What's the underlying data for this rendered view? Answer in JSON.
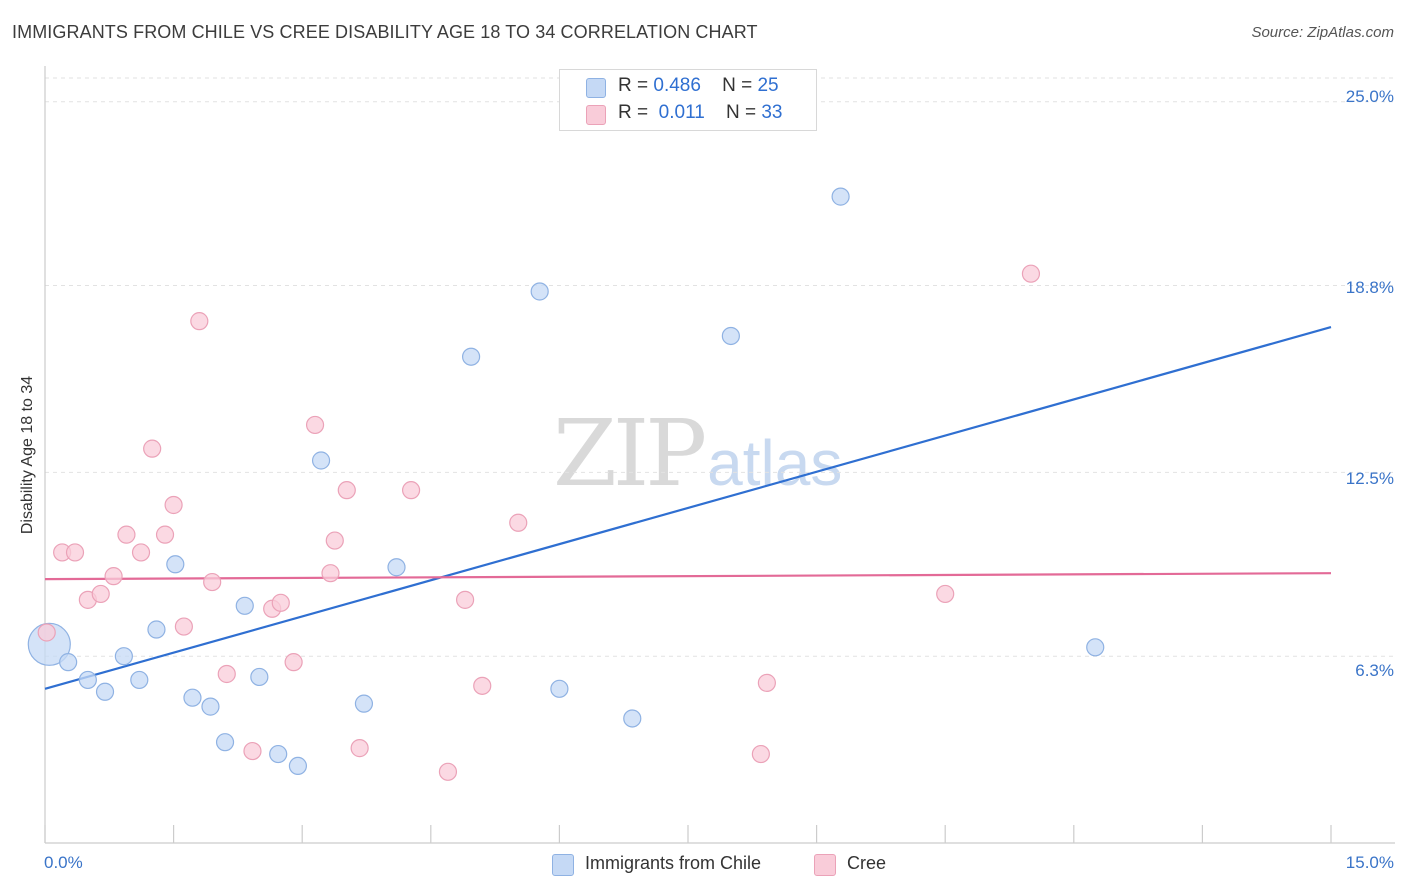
{
  "title": "IMMIGRANTS FROM CHILE VS CREE DISABILITY AGE 18 TO 34 CORRELATION CHART",
  "source": "Source: ZipAtlas.com",
  "watermark": {
    "zip": "ZIP",
    "atlas": "atlas"
  },
  "colors": {
    "blue_fill": "#c5d9f5",
    "blue_stroke": "#8fb2e3",
    "blue_line": "#2f6fd1",
    "pink_fill": "#f9ccd9",
    "pink_stroke": "#eba2b8",
    "pink_line": "#e36a97",
    "grid": "#e2e2e2",
    "tick_text": "#3a74c8"
  },
  "legend": {
    "series1": {
      "r_label": "R =",
      "r_value": "0.486",
      "n_label": "N =",
      "n_value": "25"
    },
    "series2": {
      "r_label": "R =",
      "r_value": " 0.011",
      "n_label": "N =",
      "n_value": "33"
    }
  },
  "chart_data": {
    "type": "scatter",
    "title": "IMMIGRANTS FROM CHILE VS CREE DISABILITY AGE 18 TO 34 CORRELATION CHART",
    "xlabel": "",
    "ylabel": "Disability Age 18 to 34",
    "xlim": [
      0,
      15
    ],
    "ylim": [
      0,
      25.8
    ],
    "x_tick_labels": [
      "0.0%",
      "15.0%"
    ],
    "y_ticks": [
      6.3,
      12.5,
      18.8,
      25.0
    ],
    "y_tick_labels": [
      "6.3%",
      "12.5%",
      "18.8%",
      "25.0%"
    ],
    "grid": true,
    "legend_position": "top-center",
    "series": [
      {
        "name": "Immigrants from Chile",
        "r": 0.486,
        "n": 25,
        "trend": {
          "x": [
            0,
            15
          ],
          "y": [
            5.2,
            17.4
          ]
        },
        "points": [
          {
            "x": 0.05,
            "y": 6.7,
            "big": true
          },
          {
            "x": 0.27,
            "y": 6.1
          },
          {
            "x": 0.5,
            "y": 5.5
          },
          {
            "x": 0.7,
            "y": 5.1
          },
          {
            "x": 0.92,
            "y": 6.3
          },
          {
            "x": 1.1,
            "y": 5.5
          },
          {
            "x": 1.3,
            "y": 7.2
          },
          {
            "x": 1.52,
            "y": 9.4
          },
          {
            "x": 1.72,
            "y": 4.9
          },
          {
            "x": 1.93,
            "y": 4.6
          },
          {
            "x": 2.1,
            "y": 3.4
          },
          {
            "x": 2.33,
            "y": 8.0
          },
          {
            "x": 2.5,
            "y": 5.6
          },
          {
            "x": 2.72,
            "y": 3.0
          },
          {
            "x": 2.95,
            "y": 2.6
          },
          {
            "x": 3.22,
            "y": 12.9
          },
          {
            "x": 3.72,
            "y": 4.7
          },
          {
            "x": 4.1,
            "y": 9.3
          },
          {
            "x": 4.97,
            "y": 16.4
          },
          {
            "x": 5.77,
            "y": 18.6
          },
          {
            "x": 6.0,
            "y": 5.2
          },
          {
            "x": 6.85,
            "y": 4.2
          },
          {
            "x": 8.0,
            "y": 17.1
          },
          {
            "x": 9.28,
            "y": 21.8
          },
          {
            "x": 12.25,
            "y": 6.6
          }
        ]
      },
      {
        "name": "Cree",
        "r": 0.011,
        "n": 33,
        "trend": {
          "x": [
            0,
            15
          ],
          "y": [
            8.9,
            9.1
          ]
        },
        "points": [
          {
            "x": 0.02,
            "y": 7.1
          },
          {
            "x": 0.2,
            "y": 9.8
          },
          {
            "x": 0.35,
            "y": 9.8
          },
          {
            "x": 0.5,
            "y": 8.2
          },
          {
            "x": 0.65,
            "y": 8.4
          },
          {
            "x": 0.8,
            "y": 9.0
          },
          {
            "x": 0.95,
            "y": 10.4
          },
          {
            "x": 1.12,
            "y": 9.8
          },
          {
            "x": 1.25,
            "y": 13.3
          },
          {
            "x": 1.4,
            "y": 10.4
          },
          {
            "x": 1.5,
            "y": 11.4
          },
          {
            "x": 1.62,
            "y": 7.3
          },
          {
            "x": 1.8,
            "y": 17.6
          },
          {
            "x": 1.95,
            "y": 8.8
          },
          {
            "x": 2.12,
            "y": 5.7
          },
          {
            "x": 2.42,
            "y": 3.1
          },
          {
            "x": 2.65,
            "y": 7.9
          },
          {
            "x": 2.75,
            "y": 8.1
          },
          {
            "x": 2.9,
            "y": 6.1
          },
          {
            "x": 3.15,
            "y": 14.1
          },
          {
            "x": 3.33,
            "y": 9.1
          },
          {
            "x": 3.38,
            "y": 10.2
          },
          {
            "x": 3.52,
            "y": 11.9
          },
          {
            "x": 3.67,
            "y": 3.2
          },
          {
            "x": 4.27,
            "y": 11.9
          },
          {
            "x": 4.7,
            "y": 2.4
          },
          {
            "x": 4.9,
            "y": 8.2
          },
          {
            "x": 5.1,
            "y": 5.3
          },
          {
            "x": 5.52,
            "y": 10.8
          },
          {
            "x": 8.35,
            "y": 3.0
          },
          {
            "x": 8.42,
            "y": 5.4
          },
          {
            "x": 10.5,
            "y": 8.4
          },
          {
            "x": 11.5,
            "y": 19.2
          }
        ]
      }
    ]
  }
}
